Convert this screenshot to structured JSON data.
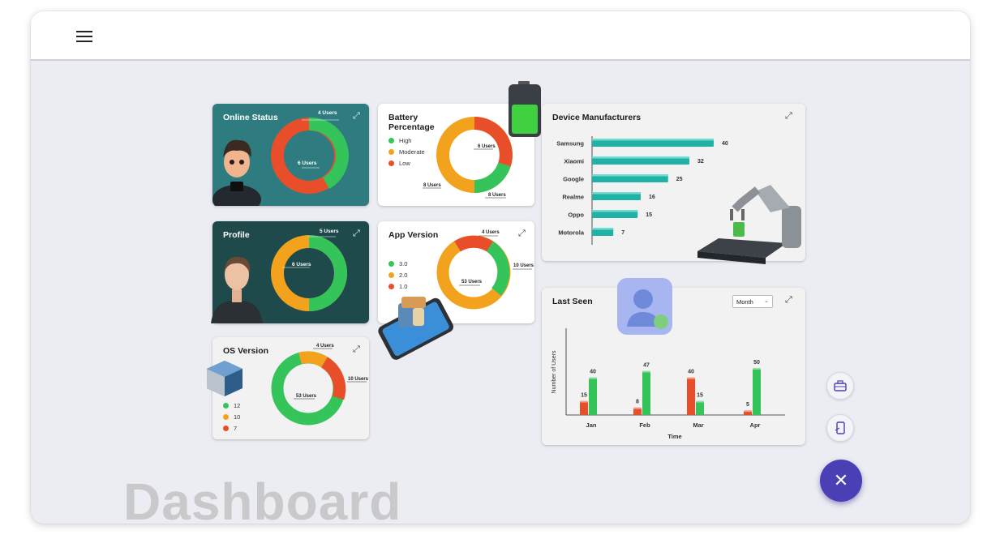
{
  "header": {
    "menu_icon": "hamburger-menu-icon"
  },
  "cards": {
    "online_status": {
      "title": "Online Status",
      "labels": [
        "4 Users",
        "6 Users"
      ],
      "values": [
        4,
        6
      ]
    },
    "battery": {
      "title_line1": "Battery",
      "title_line2": "Percentage",
      "legend": [
        "High",
        "Moderate",
        "Low"
      ],
      "labels": [
        "6 Users",
        "8 Users",
        "8 Users"
      ],
      "values": [
        8,
        8,
        6
      ]
    },
    "profile": {
      "title": "Profile",
      "labels": [
        "5 Users",
        "6 Users"
      ],
      "values": [
        5,
        6
      ]
    },
    "app_version": {
      "title": "App Version",
      "legend": [
        "3.0",
        "2.0",
        "1.0"
      ],
      "labels": [
        "4 Users",
        "10 Users",
        "53 Users"
      ],
      "values": [
        10,
        53,
        4
      ]
    },
    "os_version": {
      "title": "OS Version",
      "legend": [
        "12",
        "10",
        "7"
      ],
      "labels": [
        "4 Users",
        "10 Users",
        "53 Users"
      ],
      "values": [
        53,
        4,
        10
      ]
    },
    "device_manufacturers": {
      "title": "Device Manufacturers"
    },
    "last_seen": {
      "title": "Last Seen",
      "period_select": "Month",
      "chevron": "⌄"
    }
  },
  "expand_icon": "⤢",
  "colors": {
    "green": "#34c45a",
    "orange": "#f3a21d",
    "red": "#e94e2a",
    "teal_bar": "#22b1a5",
    "accent": "#4a3fb5"
  },
  "chart_data": [
    {
      "type": "bar",
      "orientation": "horizontal",
      "title": "Device Manufacturers",
      "categories": [
        "Samsung",
        "Xiaomi",
        "Google",
        "Realme",
        "Oppo",
        "Motorola"
      ],
      "values": [
        40,
        32,
        25,
        16,
        15,
        7
      ]
    },
    {
      "type": "bar",
      "title": "Last Seen",
      "xlabel": "Time",
      "ylabel": "Number of Users",
      "categories": [
        "Jan",
        "Feb",
        "Mar",
        "Apr"
      ],
      "series": [
        {
          "color": "#e94e2a",
          "values": [
            15,
            8,
            40,
            5
          ]
        },
        {
          "color": "#34c45a",
          "values": [
            40,
            47,
            15,
            50
          ]
        }
      ]
    }
  ],
  "watermark": "Dashboard",
  "fab": {
    "close_symbol": "✕"
  }
}
